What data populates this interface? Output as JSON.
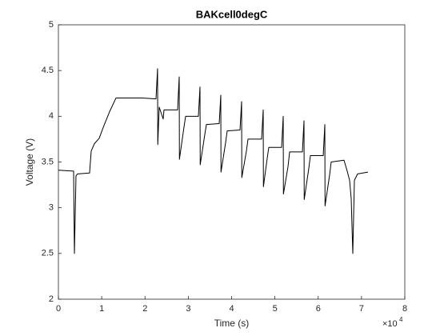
{
  "chart_data": {
    "type": "line",
    "title": "BAKcell0degC",
    "x_label": "Time (s)",
    "y_label": "Voltage (V)",
    "x_multiplier": "×10",
    "x_multiplier_exponent": "4",
    "x": [
      0,
      3510,
      3700,
      4065,
      4430,
      7200,
      7575,
      8315,
      9420,
      10530,
      11825,
      13300,
      19400,
      22540,
      22900,
      22950,
      23280,
      24200,
      24390,
      27530,
      27900,
      27950,
      29000,
      29380,
      32330,
      32700,
      32750,
      33810,
      34180,
      37140,
      37500,
      37550,
      38610,
      38980,
      41940,
      42310,
      42360,
      43420,
      43790,
      46930,
      47300,
      47350,
      48220,
      48590,
      51550,
      51920,
      51970,
      53030,
      53400,
      56350,
      56720,
      56770,
      57830,
      58200,
      61160,
      61530,
      61580,
      62640,
      63000,
      65960,
      66700,
      67250,
      67620,
      67990,
      68360,
      69100,
      71500
    ],
    "series": [
      {
        "name": "Voltage",
        "color": "#000000",
        "values": [
          3.41,
          3.4,
          2.5,
          3.35,
          3.37,
          3.38,
          3.62,
          3.7,
          3.76,
          3.9,
          4.05,
          4.2,
          4.2,
          4.19,
          4.52,
          3.69,
          4.1,
          3.97,
          4.07,
          4.07,
          4.43,
          3.53,
          3.88,
          4.0,
          4.0,
          4.32,
          3.47,
          3.8,
          3.91,
          3.92,
          4.23,
          3.39,
          3.71,
          3.84,
          3.85,
          4.16,
          3.33,
          3.62,
          3.75,
          3.75,
          4.07,
          3.23,
          3.54,
          3.66,
          3.66,
          4.0,
          3.15,
          3.45,
          3.61,
          3.61,
          3.95,
          3.09,
          3.43,
          3.57,
          3.57,
          3.91,
          3.02,
          3.36,
          3.5,
          3.52,
          3.4,
          3.3,
          3.1,
          2.5,
          3.3,
          3.37,
          3.39
        ]
      }
    ],
    "xlim": [
      0,
      80000
    ],
    "xticks": [
      0,
      {
        "value": 10000,
        "label": "1"
      },
      {
        "value": 20000,
        "label": "2"
      },
      {
        "value": 30000,
        "label": "3"
      },
      {
        "value": 40000,
        "label": "4"
      },
      {
        "value": 50000,
        "label": "5"
      },
      {
        "value": 60000,
        "label": "6"
      },
      {
        "value": 70000,
        "label": "7"
      },
      {
        "value": 80000,
        "label": "8"
      }
    ],
    "ylim": [
      2,
      5
    ],
    "yticks": [
      2,
      2.5,
      3,
      3.5,
      4,
      4.5,
      5
    ],
    "grid": false
  }
}
